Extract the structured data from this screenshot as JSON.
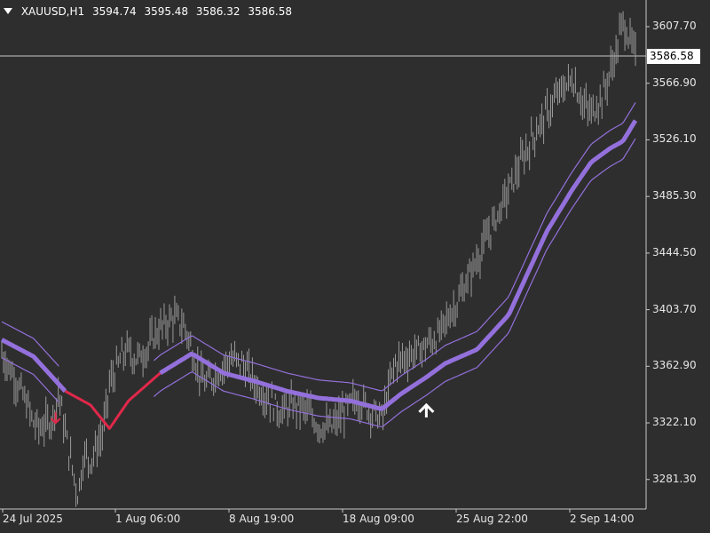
{
  "header": {
    "symbol": "XAUUSD,H1",
    "open": "3594.74",
    "high": "3595.48",
    "low": "3586.32",
    "close": "3586.58"
  },
  "current_price_label": "3586.58",
  "colors": {
    "background": "#2e2e2e",
    "axis": "#c8c8c8",
    "price_bars": "#9a9a9a",
    "band_up": "#9370db",
    "band_down": "#e0284a",
    "price_line": "#d0d0d0"
  },
  "chart_data": {
    "type": "line",
    "title": "XAUUSD,H1",
    "xlabel": "",
    "ylabel": "",
    "ylim": [
      3260,
      3625
    ],
    "grid": false,
    "y_ticks": [
      "3607.70",
      "3566.90",
      "3526.10",
      "3485.30",
      "3444.50",
      "3403.70",
      "3362.90",
      "3322.10",
      "3281.30"
    ],
    "x_ticks": [
      "24 Jul 2025",
      "1 Aug 06:00",
      "8 Aug 19:00",
      "18 Aug 09:00",
      "25 Aug 22:00",
      "2 Sep 14:00"
    ],
    "current_price": 3586.58,
    "series": [
      {
        "type": "price",
        "x": [
          0,
          0.02,
          0.04,
          0.05,
          0.06,
          0.08,
          0.09,
          0.1,
          0.12,
          0.13,
          0.14,
          0.16,
          0.17,
          0.19,
          0.2,
          0.21,
          0.23,
          0.24,
          0.25,
          0.27,
          0.28,
          0.29,
          0.31,
          0.32,
          0.34,
          0.36,
          0.38,
          0.4,
          0.42,
          0.44,
          0.46,
          0.48,
          0.5,
          0.52,
          0.54,
          0.56,
          0.58,
          0.6,
          0.62,
          0.64,
          0.66,
          0.67,
          0.69,
          0.7,
          0.72,
          0.74,
          0.76,
          0.78,
          0.8,
          0.82,
          0.84,
          0.86,
          0.88,
          0.9,
          0.92,
          0.93,
          0.95,
          0.97,
          0.98,
          1.0
        ],
        "values": [
          3372,
          3355,
          3335,
          3322,
          3318,
          3325,
          3345,
          3315,
          3270,
          3300,
          3295,
          3315,
          3350,
          3370,
          3375,
          3368,
          3375,
          3385,
          3390,
          3398,
          3395,
          3390,
          3360,
          3350,
          3358,
          3368,
          3365,
          3350,
          3340,
          3330,
          3335,
          3332,
          3320,
          3318,
          3330,
          3340,
          3332,
          3325,
          3365,
          3370,
          3375,
          3378,
          3385,
          3395,
          3410,
          3430,
          3450,
          3470,
          3490,
          3510,
          3530,
          3545,
          3560,
          3570,
          3550,
          3545,
          3560,
          3590,
          3612,
          3587
        ]
      },
      {
        "type": "band",
        "x": [
          0,
          0.05,
          0.1,
          0.14,
          0.17,
          0.2,
          0.25,
          0.3,
          0.35,
          0.4,
          0.45,
          0.5,
          0.55,
          0.6,
          0.63,
          0.67,
          0.7,
          0.75,
          0.8,
          0.83,
          0.86,
          0.9,
          0.93,
          0.96,
          0.98,
          1.0
        ],
        "values": [
          3382,
          3370,
          3345,
          3335,
          3318,
          3338,
          3358,
          3372,
          3358,
          3352,
          3345,
          3340,
          3338,
          3332,
          3343,
          3355,
          3365,
          3375,
          3400,
          3430,
          3460,
          3490,
          3510,
          3520,
          3525,
          3540
        ],
        "upper_offset": 13,
        "lower_offset": 13
      }
    ],
    "trend_down_range": [
      0.1,
      0.25
    ]
  }
}
